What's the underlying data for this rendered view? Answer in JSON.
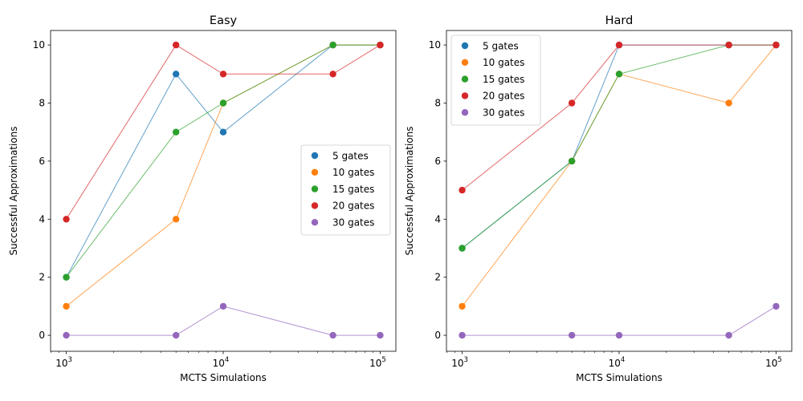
{
  "chart_data": [
    {
      "type": "line",
      "title": "Easy",
      "xlabel": "MCTS Simulations",
      "ylabel": "Successful Approximations",
      "xscale": "log",
      "x": [
        1000,
        5000,
        10000,
        50000,
        100000
      ],
      "x_ticks": [
        1000,
        10000,
        100000
      ],
      "x_tick_labels": [
        {
          "base": "10",
          "exp": "3"
        },
        {
          "base": "10",
          "exp": "4"
        },
        {
          "base": "10",
          "exp": "5"
        }
      ],
      "y_ticks": [
        0,
        2,
        4,
        6,
        8,
        10
      ],
      "ylim": [
        -0.55,
        10.5
      ],
      "legend_position": "center-right",
      "series": [
        {
          "name": "5 gates",
          "color": "#1f77b4",
          "values": [
            2,
            9,
            7,
            10,
            10
          ]
        },
        {
          "name": "10 gates",
          "color": "#ff7f0e",
          "values": [
            1,
            4,
            8,
            10,
            10
          ]
        },
        {
          "name": "15 gates",
          "color": "#2ca02c",
          "values": [
            2,
            7,
            8,
            10,
            10
          ]
        },
        {
          "name": "20 gates",
          "color": "#d62728",
          "values": [
            4,
            10,
            9,
            9,
            10
          ]
        },
        {
          "name": "30 gates",
          "color": "#9467bd",
          "values": [
            0,
            0,
            1,
            0,
            0
          ]
        }
      ]
    },
    {
      "type": "line",
      "title": "Hard",
      "xlabel": "MCTS Simulations",
      "ylabel": "Successful Approximations",
      "xscale": "log",
      "x": [
        1000,
        5000,
        10000,
        50000,
        100000
      ],
      "x_ticks": [
        1000,
        10000,
        100000
      ],
      "x_tick_labels": [
        {
          "base": "10",
          "exp": "3"
        },
        {
          "base": "10",
          "exp": "4"
        },
        {
          "base": "10",
          "exp": "5"
        }
      ],
      "y_ticks": [
        0,
        2,
        4,
        6,
        8,
        10
      ],
      "ylim": [
        -0.55,
        10.5
      ],
      "legend_position": "upper-left",
      "series": [
        {
          "name": "5 gates",
          "color": "#1f77b4",
          "values": [
            3,
            6,
            10,
            10,
            10
          ]
        },
        {
          "name": "10 gates",
          "color": "#ff7f0e",
          "values": [
            1,
            6,
            9,
            8,
            10
          ]
        },
        {
          "name": "15 gates",
          "color": "#2ca02c",
          "values": [
            3,
            6,
            9,
            10,
            10
          ]
        },
        {
          "name": "20 gates",
          "color": "#d62728",
          "values": [
            5,
            8,
            10,
            10,
            10
          ]
        },
        {
          "name": "30 gates",
          "color": "#9467bd",
          "values": [
            0,
            0,
            0,
            0,
            1
          ]
        }
      ]
    }
  ]
}
